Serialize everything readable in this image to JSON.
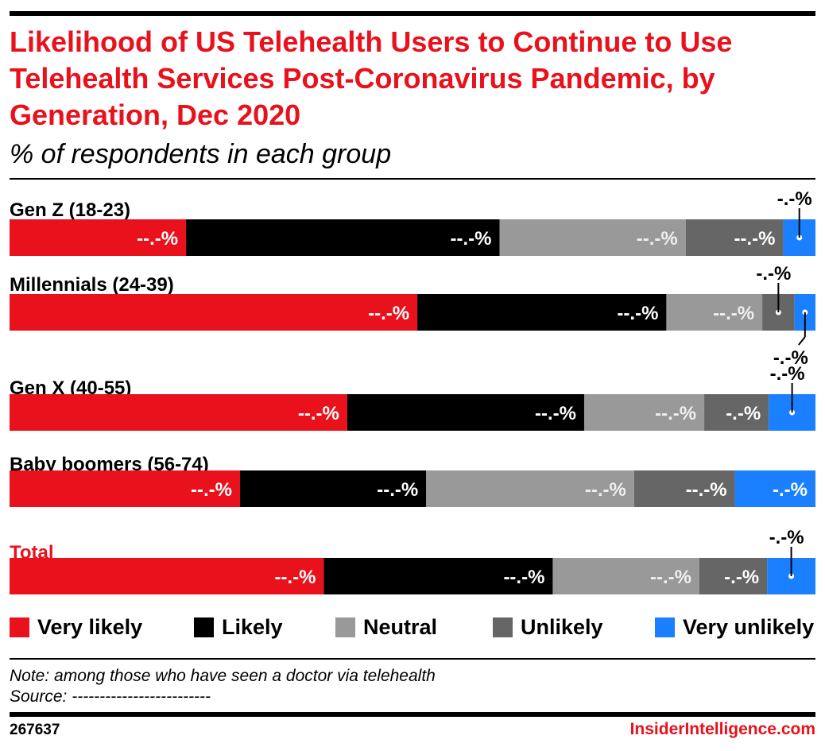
{
  "header": {
    "title": "Likelihood of US Telehealth Users to Continue to Use Telehealth Services Post-Coronavirus Pandemic, by Generation, Dec 2020",
    "subtitle": "% of respondents in each group"
  },
  "footer": {
    "note": "Note: among those who have seen a doctor via telehealth",
    "source": "Source: -------------------------",
    "chart_id": "267637",
    "brand": "InsiderIntelligence.com"
  },
  "colors": {
    "accent": "#e8111c",
    "very_likely": "#e8111c",
    "likely": "#000000",
    "neutral": "#999999",
    "unlikely": "#666666",
    "very_unlikely": "#1a80ff"
  },
  "chart_data": {
    "type": "bar",
    "orientation": "horizontal",
    "stacked": true,
    "title": "Likelihood of US Telehealth Users to Continue to Use Telehealth Services Post-Coronavirus Pandemic, by Generation, Dec 2020",
    "subtitle": "% of respondents in each group",
    "xlim": [
      0,
      100
    ],
    "legend_position": "bottom",
    "grid": false,
    "categories": [
      "Gen Z (18-23)",
      "Millennials (24-39)",
      "Gen X (40-55)",
      "Baby boomers (56-74)",
      "Total"
    ],
    "highlight_category": "Total",
    "series": [
      {
        "name": "Very likely",
        "color": "#e8111c",
        "values": [
          21.9,
          50.6,
          41.9,
          28.6,
          39.0
        ],
        "labels": [
          "--.-%",
          "--.-%",
          "--.-%",
          "--.-%",
          "--.-%"
        ]
      },
      {
        "name": "Likely",
        "color": "#000000",
        "values": [
          38.9,
          30.9,
          29.4,
          23.1,
          28.4
        ],
        "labels": [
          "--.-%",
          "--.-%",
          "--.-%",
          "--.-%",
          "--.-%"
        ]
      },
      {
        "name": "Neutral",
        "color": "#999999",
        "values": [
          23.1,
          11.9,
          14.9,
          25.8,
          18.2
        ],
        "labels": [
          "--.-%",
          "--.-%",
          "--.-%",
          "--.-%",
          "--.-%"
        ]
      },
      {
        "name": "Unlikely",
        "color": "#666666",
        "values": [
          12.1,
          4.0,
          8.0,
          12.5,
          8.4
        ],
        "labels": [
          "--.-%",
          "-.-%",
          "-.-%",
          "--.-%",
          "-.-%"
        ]
      },
      {
        "name": "Very unlikely",
        "color": "#1a80ff",
        "values": [
          4.0,
          2.6,
          5.8,
          10.0,
          6.0
        ],
        "labels": [
          "-.-%",
          "-.-%",
          "-.-%",
          "-.-%",
          "-.-%"
        ]
      }
    ]
  }
}
